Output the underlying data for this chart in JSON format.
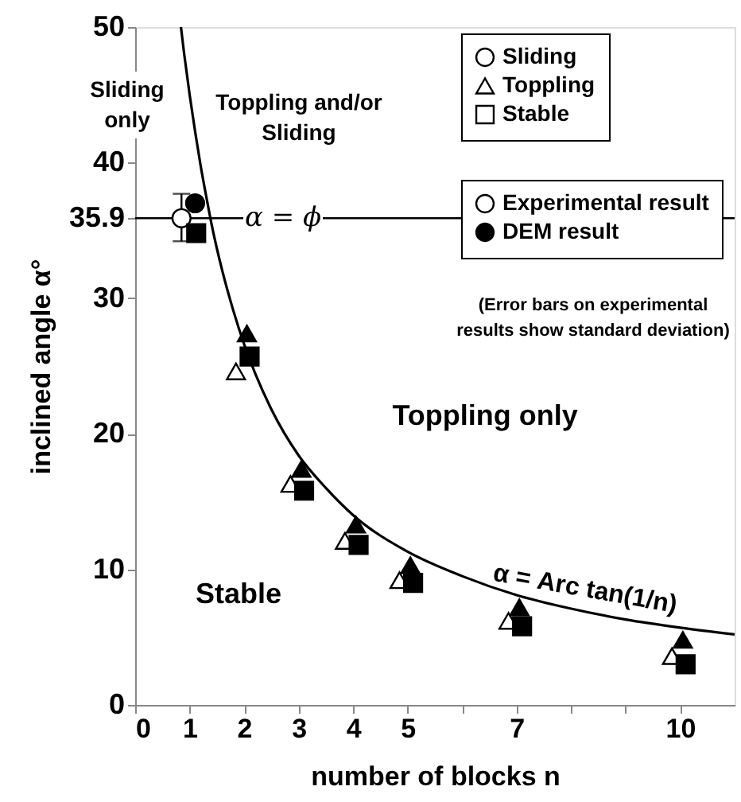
{
  "chart_data": {
    "type": "scatter",
    "xlabel": "number of blocks n",
    "ylabel": "inclined angle α°",
    "xlim": [
      0,
      11
    ],
    "ylim": [
      0,
      50
    ],
    "xticks": [
      0,
      1,
      2,
      3,
      4,
      5,
      {
        "value": 6,
        "label": null
      },
      7,
      {
        "value": 8,
        "label": null
      },
      {
        "value": 9,
        "label": null
      },
      10
    ],
    "yticks": [
      0,
      10,
      20,
      30,
      {
        "value": 35.9,
        "label": "35.9"
      },
      40,
      50
    ],
    "grid": false,
    "legend": "top right",
    "series": [
      {
        "name": "Sliding",
        "marker": "circle",
        "color": "#ffffff",
        "x": [
          0.85
        ],
        "values": [
          35.9
        ],
        "errors": [
          [
            34.2,
            37.7
          ]
        ]
      },
      {
        "name": "Toppling",
        "marker": "triangle",
        "color": "#ffffff",
        "x": [
          1.85,
          2.85,
          3.85,
          4.85,
          6.85,
          9.85
        ],
        "values": [
          24.6,
          16.3,
          12.1,
          9.2,
          6.2,
          3.6
        ]
      },
      {
        "name": "Stable",
        "marker": "square",
        "color": "#ffffff"
      },
      {
        "marker": "circle",
        "color": "#000000",
        "x": [
          1.1
        ],
        "values": [
          37.0
        ]
      },
      {
        "marker": "triangle",
        "color": "#000000",
        "x": [
          2.05,
          3.05,
          4.05,
          5.05,
          7.05,
          10.05
        ],
        "values": [
          27.4,
          17.4,
          13.3,
          10.3,
          7.2,
          4.8
        ]
      },
      {
        "marker": "square",
        "color": "#000000",
        "x": [
          1.12,
          2.1,
          3.1,
          4.1,
          5.1,
          7.1,
          10.1
        ],
        "values": [
          34.8,
          25.7,
          15.8,
          11.8,
          9.0,
          5.8,
          3.0
        ]
      },
      {
        "name": "α = Arc tan(1/n)",
        "type": "line",
        "color": "#000000",
        "x": [
          0.84,
          0.9,
          1,
          1.1,
          1.2,
          1.3,
          1.4,
          1.6,
          1.8,
          2,
          2.5,
          3,
          3.5,
          4,
          5,
          6,
          7,
          8,
          9,
          10,
          11
        ],
        "values": [
          50.0,
          48.0,
          45.0,
          42.3,
          39.8,
          37.6,
          35.5,
          32.0,
          29.1,
          26.6,
          21.8,
          18.4,
          16.0,
          14.0,
          11.3,
          9.5,
          8.1,
          7.1,
          6.3,
          5.7,
          5.2
        ]
      }
    ],
    "ref_lines": [
      {
        "axis": "y",
        "value": 35.9,
        "label": "α = ϕ",
        "color": "#000000"
      }
    ],
    "annotations": [
      "Sliding\nonly",
      "Toppling and/or\nSliding",
      "Toppling only",
      "Stable",
      "Experimental result",
      "DEM result",
      "(Error bars on experimental\nresults show standard deviation)"
    ]
  }
}
